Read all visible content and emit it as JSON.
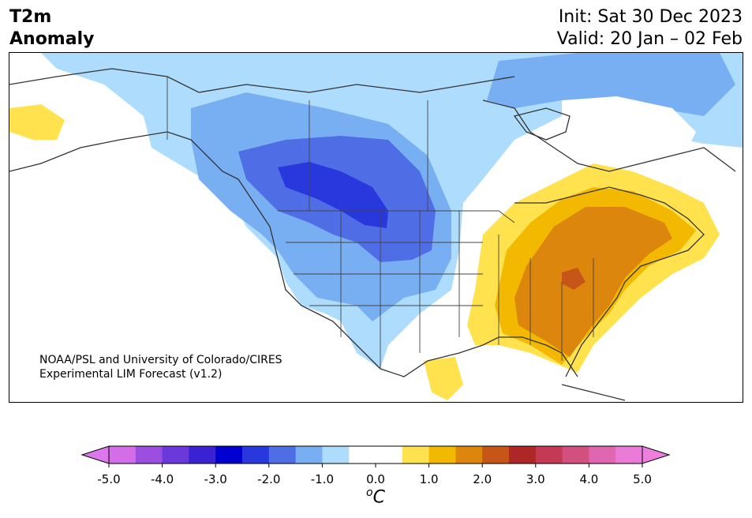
{
  "header": {
    "title_line1": "T2m",
    "title_line2": "Anomaly",
    "init_text": "Init: Sat 30 Dec 2023",
    "valid_text": "Valid: 20 Jan – 02 Feb"
  },
  "map": {
    "credit_line1": "NOAA/PSL and University of Colorado/CIRES",
    "credit_line2": "Experimental LIM Forecast (v1.2)",
    "region": "North America",
    "field": "2m temperature anomaly"
  },
  "colorbar": {
    "unit_base": "C",
    "unit_sup": "o",
    "ticks": [
      "-5.0",
      "-4.0",
      "-3.0",
      "-2.0",
      "-1.0",
      "0.0",
      "1.0",
      "2.0",
      "3.0",
      "4.0",
      "5.0"
    ],
    "colors": [
      "#d46ee8",
      "#9a4fe0",
      "#6a38db",
      "#3a22d2",
      "#0000d0",
      "#2838dc",
      "#4f6ee6",
      "#78aef2",
      "#aedcfc",
      "#ffffff",
      "#ffffff",
      "#ffe24e",
      "#f3b800",
      "#dc860e",
      "#c55618",
      "#ae2626",
      "#c43a55",
      "#d2507e",
      "#e066b0",
      "#ea7cd8"
    ],
    "under_color": "#dc78ec",
    "over_color": "#ec80dc"
  }
}
